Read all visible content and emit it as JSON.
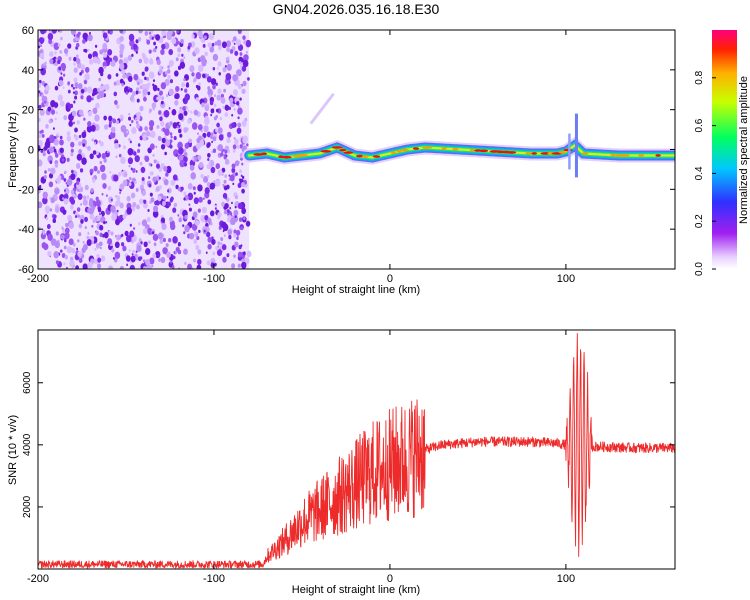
{
  "title": "GN04.2026.035.16.18.E30",
  "colors": {
    "line": "#ee2b2b",
    "noise": "#8a3ff0",
    "axis": "#000000"
  },
  "chart_data": [
    {
      "type": "heatmap",
      "name": "spectrogram",
      "title": "GN04.2026.035.16.18.E30",
      "xlabel": "Height of straight line (km)",
      "ylabel": "Frequency (Hz)",
      "xlim": [
        -200,
        162
      ],
      "ylim": [
        -60,
        60
      ],
      "xticks": [
        -200,
        -100,
        0,
        100
      ],
      "yticks": [
        -60,
        -40,
        -20,
        0,
        20,
        40,
        60
      ],
      "noise_region_x": [
        -200,
        -80
      ],
      "carrier": {
        "x": [
          -80,
          -70,
          -60,
          -50,
          -40,
          -30,
          -20,
          -10,
          0,
          10,
          20,
          40,
          60,
          80,
          95,
          100,
          105,
          110,
          130,
          162
        ],
        "freq": [
          -3,
          -2,
          -4,
          -3,
          -2,
          1,
          -3,
          -4,
          -2,
          0,
          1,
          0,
          -1,
          -2,
          -2,
          -1,
          2,
          -2,
          -3,
          -3
        ]
      },
      "colorbar": {
        "label": "Normalized spectral amplitude",
        "range": [
          0,
          1
        ],
        "ticks": [
          "0.0",
          "0.2",
          "0.4",
          "0.6",
          "0.8"
        ],
        "tick_values": [
          0,
          0.2,
          0.4,
          0.6,
          0.8
        ]
      }
    },
    {
      "type": "line",
      "name": "snr",
      "xlabel": "Height of straight line (km)",
      "ylabel": "SNR (10 * v/v)",
      "xlim": [
        -200,
        162
      ],
      "ylim": [
        0,
        7700
      ],
      "xticks": [
        -200,
        -100,
        0,
        100
      ],
      "yticks": [
        2000,
        4000,
        6000
      ],
      "series": [
        {
          "name": "SNR",
          "trend_x": [
            -200,
            -72,
            -70,
            -60,
            -50,
            -40,
            -30,
            -20,
            -10,
            0,
            10,
            20,
            30,
            50,
            80,
            95,
            100,
            115,
            140,
            162
          ],
          "trend_y": [
            150,
            150,
            400,
            900,
            1500,
            1900,
            2300,
            2700,
            3100,
            3350,
            3550,
            3850,
            4000,
            4100,
            4100,
            4050,
            4000,
            3950,
            3900,
            3900
          ],
          "oscillation_x": [
            100,
            115
          ],
          "oscillation_min": 300,
          "oscillation_max": 7600
        }
      ]
    }
  ]
}
